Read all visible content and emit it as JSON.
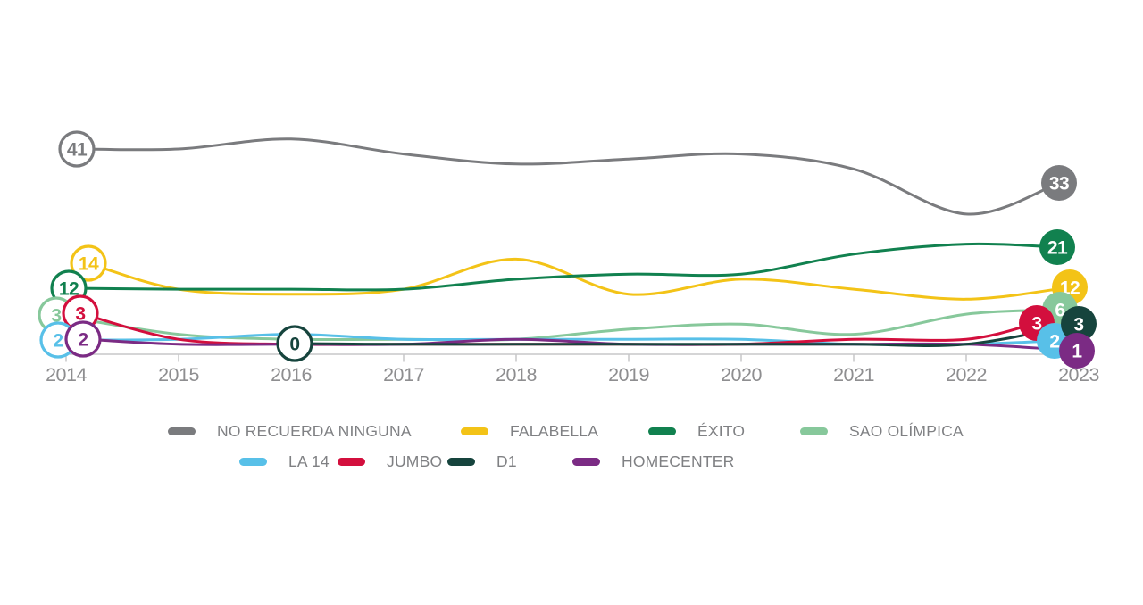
{
  "chart_data": {
    "type": "line",
    "x": [
      2014,
      2015,
      2016,
      2017,
      2018,
      2019,
      2020,
      2021,
      2022,
      2023
    ],
    "x_ticks": [
      "2014",
      "2015",
      "2016",
      "2017",
      "2018",
      "2019",
      "2020",
      "2021",
      "2022",
      "2023"
    ],
    "ylim": [
      0,
      48
    ],
    "grid": false,
    "legend_position": "bottom",
    "series": [
      {
        "name": "NO RECUERDA NINGUNA",
        "color": "#7a7b7e",
        "start_label": "41",
        "end_label": "33",
        "values": [
          41,
          41,
          43,
          40,
          38,
          39,
          40,
          37,
          28,
          33
        ]
      },
      {
        "name": "FALABELLA",
        "color": "#f3c317",
        "start_label": "14",
        "end_label": "12",
        "values": [
          14,
          13,
          12,
          13,
          19,
          12,
          15,
          13,
          11,
          12
        ]
      },
      {
        "name": "ÉXITO",
        "color": "#11814f",
        "start_label": "12",
        "end_label": "21",
        "values": [
          12,
          13,
          13,
          13,
          15,
          16,
          16,
          20,
          22,
          21
        ]
      },
      {
        "name": "SAO OLÍMPICA",
        "color": "#87c89b",
        "start_label": "3",
        "end_label": "6",
        "values": [
          3,
          4,
          3,
          3,
          3,
          5,
          6,
          4,
          8,
          6
        ]
      },
      {
        "name": "LA 14",
        "color": "#58c0e8",
        "start_label": "2",
        "end_label": "2",
        "values": [
          2,
          3,
          4,
          3,
          3,
          3,
          3,
          2,
          2,
          2
        ]
      },
      {
        "name": "JUMBO",
        "color": "#d30f3d",
        "start_label": "3",
        "end_label": "3",
        "values": [
          3,
          3,
          2,
          2,
          2,
          2,
          2,
          3,
          3,
          3
        ]
      },
      {
        "name": "D1",
        "color": "#16443d",
        "start_label": "0",
        "end_label": "3",
        "values": [
          null,
          null,
          0,
          2,
          2,
          2,
          2,
          2,
          2,
          3
        ]
      },
      {
        "name": "HOMECENTER",
        "color": "#7b2b84",
        "start_label": "2",
        "end_label": "1",
        "values": [
          2,
          2,
          2,
          2,
          3,
          2,
          2,
          2,
          2,
          1
        ]
      }
    ]
  }
}
